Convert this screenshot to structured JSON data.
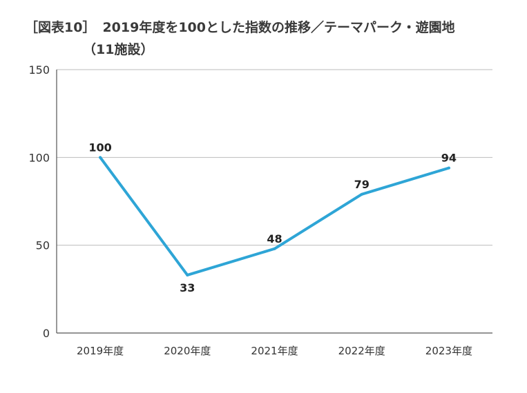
{
  "title": {
    "prefix": "［図表10］",
    "line1": "2019年度を100とした指数の推移／テーマパーク・遊園地",
    "line2": "（11施設）"
  },
  "colors": {
    "line": "#2ea5d6",
    "grid": "#bbbbbb",
    "axis": "#555555"
  },
  "chart_data": {
    "type": "line",
    "title": "2019年度を100とした指数の推移／テーマパーク・遊園地（11施設）",
    "categories": [
      "2019年度",
      "2020年度",
      "2021年度",
      "2022年度",
      "2023年度"
    ],
    "series": [
      {
        "values": [
          100,
          33,
          48,
          79,
          94
        ]
      }
    ],
    "data_labels": [
      "100",
      "33",
      "48",
      "79",
      "94"
    ],
    "ylim": [
      0,
      150
    ],
    "yticks": [
      0,
      50,
      100,
      150
    ],
    "grid": true,
    "xlabel": "",
    "ylabel": ""
  }
}
